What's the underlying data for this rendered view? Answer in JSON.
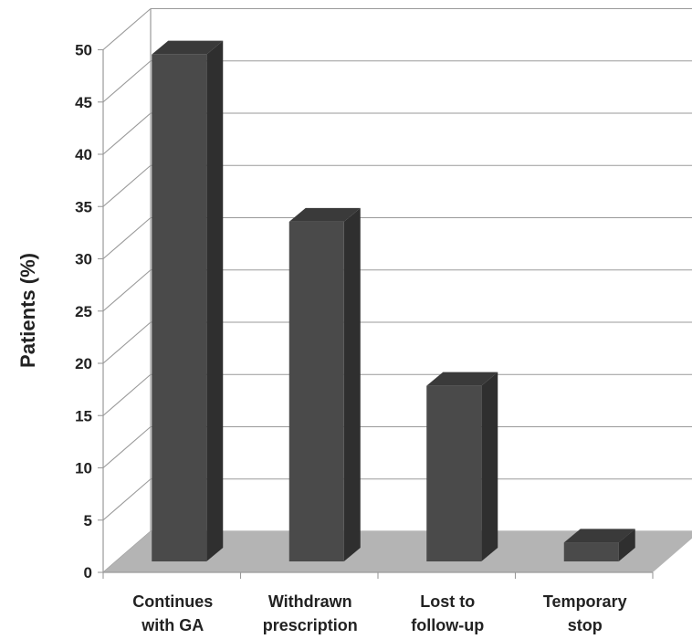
{
  "chart_data": {
    "type": "bar",
    "categories": [
      [
        "Continues",
        "with GA"
      ],
      [
        "Withdrawn",
        "prescription"
      ],
      [
        "Lost to",
        "follow-up"
      ],
      [
        "Temporary",
        "stop"
      ]
    ],
    "values": [
      48.5,
      32.5,
      16.8,
      1.8
    ],
    "ylabel": "Patients (%)",
    "yticks": [
      0,
      5,
      10,
      15,
      20,
      25,
      30,
      35,
      40,
      45,
      50
    ],
    "ylim": [
      0,
      50
    ],
    "grid": true,
    "style": "3d",
    "colors": {
      "bar_front": "#4a4a4a",
      "bar_side": "#2f2f2f",
      "bar_top": "#3a3a3a",
      "floor": "#b4b4b4",
      "grid": "#9a9a9a"
    }
  }
}
